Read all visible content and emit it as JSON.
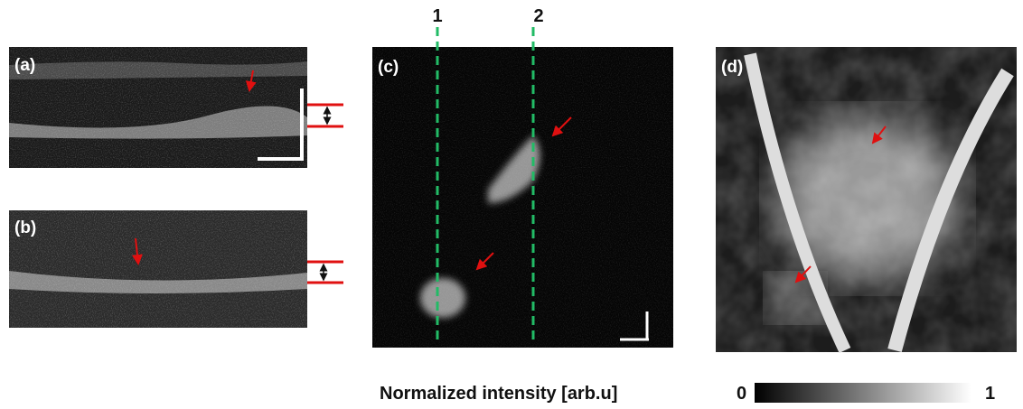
{
  "panels": [
    {
      "label": "(a)"
    },
    {
      "label": "(b)"
    },
    {
      "label": "(c)"
    },
    {
      "label": "(d)"
    }
  ],
  "scan_lines": [
    {
      "label": "1"
    },
    {
      "label": "2"
    }
  ],
  "colorbar": {
    "label": "Normalized intensity [arb.u]",
    "min": 0,
    "max": 1
  }
}
